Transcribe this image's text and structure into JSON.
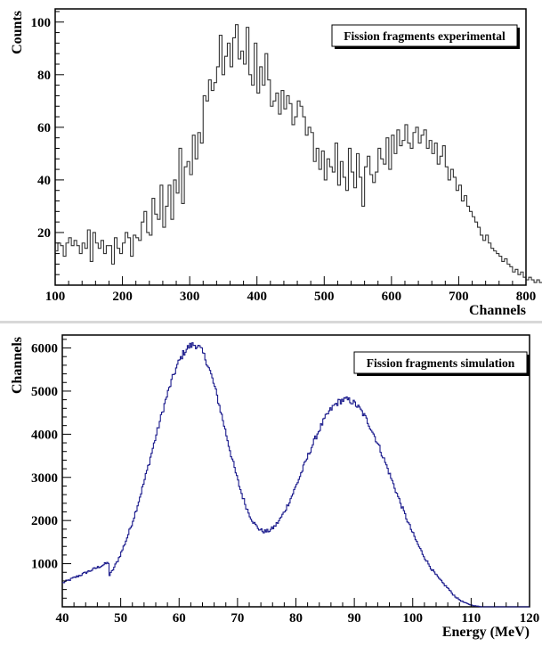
{
  "chart_data": [
    {
      "type": "histogram",
      "legend": "Fission fragments experimental",
      "legend_position": "top-right",
      "xlabel": "Channels",
      "ylabel": "Counts",
      "xlim": [
        100,
        800
      ],
      "ylim": [
        0,
        105
      ],
      "x_ticks": [
        100,
        200,
        300,
        400,
        500,
        600,
        700,
        800
      ],
      "y_ticks": [
        20,
        40,
        60,
        80,
        100
      ],
      "color": "#333333",
      "grid": false,
      "bin_width": 4,
      "x_start": 100,
      "values": [
        13,
        16,
        15,
        11,
        16,
        18,
        15,
        17,
        15,
        12,
        16,
        14,
        21,
        9,
        20,
        16,
        14,
        17,
        12,
        15,
        15,
        8,
        18,
        14,
        12,
        16,
        20,
        18,
        11,
        19,
        18,
        17,
        24,
        28,
        20,
        19,
        33,
        27,
        25,
        38,
        22,
        30,
        38,
        25,
        40,
        35,
        52,
        31,
        45,
        47,
        42,
        57,
        48,
        58,
        54,
        72,
        70,
        78,
        74,
        77,
        83,
        95,
        80,
        87,
        92,
        83,
        94,
        99,
        86,
        89,
        84,
        98,
        80,
        76,
        92,
        73,
        83,
        76,
        88,
        78,
        68,
        70,
        73,
        65,
        74,
        67,
        72,
        69,
        61,
        64,
        70,
        68,
        64,
        57,
        60,
        58,
        47,
        52,
        44,
        51,
        40,
        48,
        45,
        43,
        54,
        38,
        47,
        41,
        36,
        52,
        43,
        37,
        50,
        41,
        30,
        45,
        49,
        42,
        39,
        43,
        52,
        48,
        46,
        56,
        44,
        57,
        50,
        59,
        53,
        55,
        61,
        54,
        52,
        58,
        60,
        54,
        57,
        59,
        52,
        55,
        50,
        54,
        46,
        49,
        53,
        45,
        40,
        44,
        41,
        36,
        38,
        32,
        34,
        30,
        28,
        26,
        24,
        22,
        19,
        17,
        19,
        16,
        14,
        13,
        12,
        11,
        9,
        10,
        8,
        7,
        5,
        6,
        4,
        5,
        3,
        2,
        3,
        2,
        1,
        2,
        1,
        1,
        2,
        0,
        1,
        1,
        0,
        1,
        0,
        0,
        1,
        0,
        0,
        0,
        0,
        0
      ]
    },
    {
      "type": "histogram",
      "legend": "Fission fragments simulation",
      "legend_position": "top-right",
      "xlabel": "Energy (MeV)",
      "ylabel": "Channels",
      "xlim": [
        40,
        120
      ],
      "ylim": [
        0,
        6300
      ],
      "x_ticks": [
        40,
        50,
        60,
        70,
        80,
        90,
        100,
        110,
        120
      ],
      "y_ticks": [
        1000,
        2000,
        3000,
        4000,
        5000,
        6000
      ],
      "color": "#1a1a8c",
      "grid": false,
      "bin_width": 0.2,
      "x_start": 40,
      "model": {
        "peaks": [
          {
            "center": 62.5,
            "height": 6050,
            "sigma_left": 7.0,
            "sigma_right": 5.8
          },
          {
            "center": 88.5,
            "height": 4800,
            "sigma_left": 8.0,
            "sigma_right": 8.0
          }
        ],
        "floor_at_40": 550
      }
    }
  ]
}
